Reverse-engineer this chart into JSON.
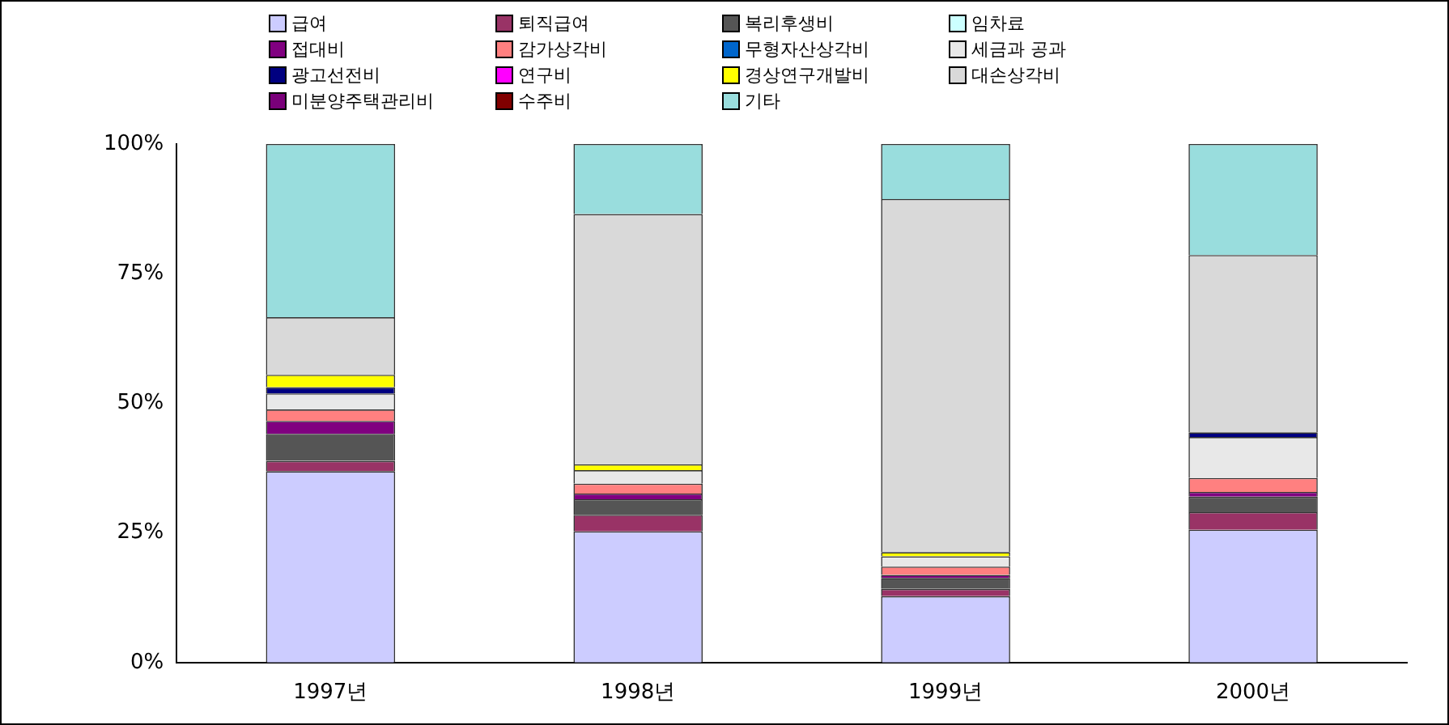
{
  "chart_data": {
    "type": "bar",
    "stacked": true,
    "legend": "top",
    "categories": [
      "1997년",
      "1998년",
      "1999년",
      "2000년"
    ],
    "ylim": [
      0,
      100
    ],
    "yticks": [
      {
        "value": 0,
        "label": "0%"
      },
      {
        "value": 25,
        "label": "25%"
      },
      {
        "value": 50,
        "label": "50%"
      },
      {
        "value": 75,
        "label": "75%"
      },
      {
        "value": 100,
        "label": "100%"
      }
    ],
    "series": [
      {
        "name": "급여",
        "color": "#ccccff",
        "values": [
          36.9,
          25.3,
          12.8,
          25.6
        ]
      },
      {
        "name": "퇴직급여",
        "color": "#993366",
        "values": [
          2.0,
          3.2,
          1.4,
          3.4
        ]
      },
      {
        "name": "복리후생비",
        "color": "#555555",
        "values": [
          5.2,
          3.0,
          2.1,
          3.0
        ]
      },
      {
        "name": "임차료",
        "color": "#ccffff",
        "values": [
          0,
          0,
          0,
          0
        ]
      },
      {
        "name": "접대비",
        "color": "#800080",
        "values": [
          2.5,
          1.1,
          0.6,
          0.9
        ]
      },
      {
        "name": "감가상각비",
        "color": "#ff8080",
        "values": [
          2.2,
          1.9,
          1.6,
          2.7
        ]
      },
      {
        "name": "무형자산상각비",
        "color": "#0066cc",
        "values": [
          0,
          0,
          0,
          0
        ]
      },
      {
        "name": "세금과 공과",
        "color": "#e8e8e8",
        "values": [
          3.1,
          2.6,
          2.0,
          7.9
        ]
      },
      {
        "name": "광고선전비",
        "color": "#000080",
        "values": [
          1.2,
          0,
          0,
          0.9
        ]
      },
      {
        "name": "연구비",
        "color": "#ff00ff",
        "values": [
          0,
          0,
          0,
          0
        ]
      },
      {
        "name": "경상연구개발비",
        "color": "#ffff00",
        "values": [
          2.4,
          1.1,
          0.8,
          0
        ]
      },
      {
        "name": "대손상각비",
        "color": "#d9d9d9",
        "values": [
          11.1,
          48.3,
          68.1,
          34.2
        ]
      },
      {
        "name": "미분양주택관리비",
        "color": "#7a007a",
        "values": [
          0,
          0,
          0,
          0
        ]
      },
      {
        "name": "수주비",
        "color": "#800000",
        "values": [
          0,
          0,
          0,
          0
        ]
      },
      {
        "name": "기타",
        "color": "#99dddd",
        "values": [
          33.4,
          13.5,
          10.6,
          21.4
        ]
      }
    ]
  }
}
